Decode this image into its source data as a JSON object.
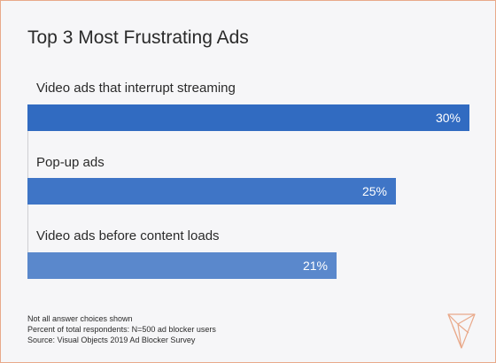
{
  "chart_data": {
    "type": "bar",
    "orientation": "horizontal",
    "title": "Top 3 Most Frustrating Ads",
    "categories": [
      "Video ads that interrupt streaming",
      "Pop-up ads",
      "Video ads before content loads"
    ],
    "values": [
      30,
      25,
      21
    ],
    "value_labels": [
      "30%",
      "25%",
      "21%"
    ],
    "bar_colors": [
      "#316bc1",
      "#3f75c6",
      "#5a88cc"
    ],
    "xlim": [
      0,
      30
    ],
    "grid": false,
    "legend": "none"
  },
  "notes": [
    "Not all answer choices shown",
    "Percent of total respondents: N=500 ad blocker users",
    "Source: Visual Objects 2019 Ad Blocker Survey"
  ],
  "logo_icon": "visual-objects-v-logo-icon",
  "colors": {
    "accent": "#e9a98a",
    "background": "#f6f6f8"
  }
}
